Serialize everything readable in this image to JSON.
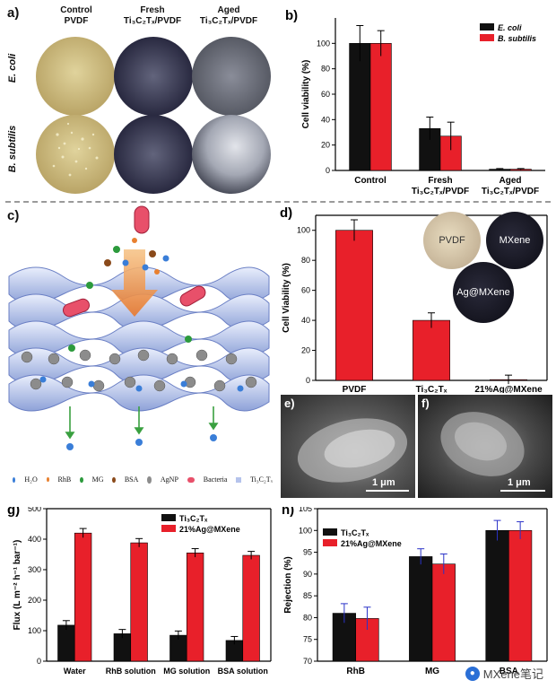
{
  "panels": {
    "a": {
      "label": "a)",
      "columns": [
        {
          "line1": "Control",
          "line2": "PVDF"
        },
        {
          "line1": "Fresh",
          "line2": "Ti₃C₂Tₓ/PVDF"
        },
        {
          "line1": "Aged",
          "line2": "Ti₃C₂Tₓ/PVDF"
        }
      ],
      "rows": [
        "E. coli",
        "B. subtilis"
      ],
      "colors": {
        "control": "#c9b67a",
        "fresh": "#3a3a5a",
        "aged": "#6e7180"
      }
    },
    "c": {
      "label": "c)",
      "legend": [
        "H₂O",
        "RhB",
        "MG",
        "BSA",
        "AgNP",
        "Bacteria",
        "Ti₃C₂Tₓ"
      ]
    },
    "d": {
      "insets": [
        "PVDF",
        "MXene",
        "Ag@MXene"
      ]
    },
    "e": {
      "label": "e)",
      "scale": "1 μm"
    },
    "f": {
      "label": "f)",
      "scale": "1 μm"
    }
  },
  "watermark": {
    "text": "MXene笔记",
    "icon": "wechat-icon"
  },
  "chart_data": [
    {
      "id": "b",
      "panel_label": "b)",
      "type": "bar",
      "categories": [
        "Control",
        "Fresh\nTi₃C₂Tₓ/PVDF",
        "Aged\nTi₃C₂Tₓ/PVDF"
      ],
      "series": [
        {
          "name": "E. coli",
          "color": "#111111",
          "values": [
            100,
            33,
            1
          ],
          "errors": [
            14,
            9,
            0.5
          ]
        },
        {
          "name": "B. subtilis",
          "color": "#e8202a",
          "values": [
            100,
            27,
            1
          ],
          "errors": [
            10,
            11,
            0.5
          ]
        }
      ],
      "ylabel": "Cell viability (%)",
      "ylim": [
        0,
        120
      ],
      "yticks": [
        0,
        20,
        40,
        60,
        80,
        100
      ],
      "legend": "top-right"
    },
    {
      "id": "d",
      "panel_label": "d)",
      "type": "bar",
      "categories": [
        "PVDF",
        "Ti₃C₂Tₓ",
        "21%Ag@MXene"
      ],
      "series": [
        {
          "color": "#e8202a",
          "values": [
            100,
            40,
            0.5
          ],
          "errors": [
            7,
            5,
            3
          ]
        }
      ],
      "ylabel": "Cell Viability (%)",
      "ylim": [
        0,
        110
      ],
      "yticks": [
        0,
        20,
        40,
        60,
        80,
        100
      ]
    },
    {
      "id": "g",
      "panel_label": "g)",
      "type": "bar",
      "categories": [
        "Water",
        "RhB solution",
        "MG solution",
        "BSA solution"
      ],
      "series": [
        {
          "name": "Ti₃C₂Tₓ",
          "color": "#111111",
          "values": [
            118,
            90,
            85,
            68
          ],
          "errors": [
            15,
            14,
            14,
            13
          ]
        },
        {
          "name": "21%Ag@MXene",
          "color": "#e8202a",
          "values": [
            420,
            388,
            355,
            347
          ],
          "errors": [
            15,
            14,
            14,
            13
          ]
        }
      ],
      "ylabel": "Flux (L m⁻² h⁻¹ bar⁻¹)",
      "ylim": [
        0,
        500
      ],
      "yticks": [
        0,
        100,
        200,
        300,
        400,
        500
      ],
      "legend": "top-right"
    },
    {
      "id": "h",
      "panel_label": "h)",
      "type": "bar",
      "categories": [
        "RhB",
        "MG",
        "BSA"
      ],
      "series": [
        {
          "name": "Ti₃C₂Tₓ",
          "color": "#111111",
          "values": [
            81,
            94,
            100
          ],
          "errors": [
            2.2,
            1.8,
            2.3
          ]
        },
        {
          "name": "21%Ag@MXene",
          "color": "#e8202a",
          "values": [
            79.8,
            92.3,
            100
          ],
          "errors": [
            2.6,
            2.3,
            2.0
          ]
        }
      ],
      "ylabel": "Rejection (%)",
      "ylim": [
        70,
        105
      ],
      "yticks": [
        70,
        75,
        80,
        85,
        90,
        95,
        100,
        105
      ],
      "legend": "top-left"
    }
  ]
}
